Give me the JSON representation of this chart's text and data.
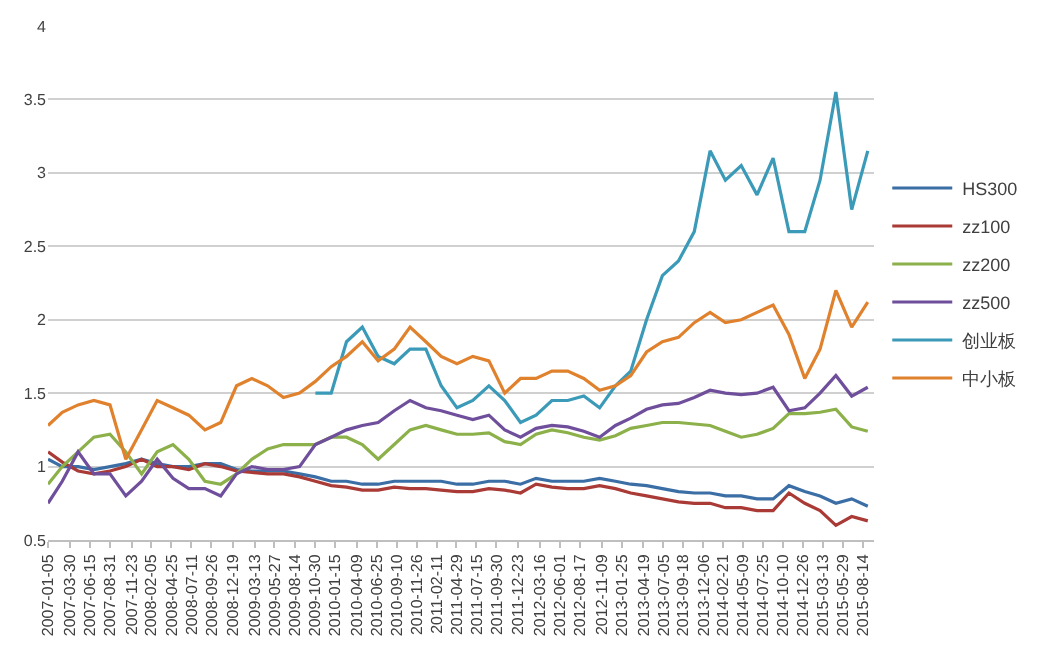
{
  "chart_data": {
    "type": "line",
    "x": [
      "2007-01-05",
      "2007-03",
      "2007-05",
      "2007-07",
      "2007-09",
      "2007-11",
      "2008-01",
      "2008-03",
      "2008-05",
      "2008-07",
      "2008-09",
      "2008-11",
      "2009-01",
      "2009-03",
      "2009-05",
      "2009-07",
      "2009-09",
      "2009-11",
      "2010-01",
      "2010-03",
      "2010-05",
      "2010-07",
      "2010-09",
      "2010-11",
      "2011-01",
      "2011-03",
      "2011-05",
      "2011-07",
      "2011-09",
      "2011-11",
      "2012-01",
      "2012-03",
      "2012-05",
      "2012-07",
      "2012-09",
      "2012-11",
      "2013-01",
      "2013-03",
      "2013-05",
      "2013-07",
      "2013-09",
      "2013-11",
      "2014-01",
      "2014-03",
      "2014-05",
      "2014-07",
      "2014-09",
      "2014-11",
      "2015-01",
      "2015-03",
      "2015-05",
      "2015-07",
      "2015-09"
    ],
    "series": [
      {
        "name": "HS300",
        "color": "#3a6ea5",
        "values": [
          1.05,
          1.0,
          1.0,
          0.98,
          1.0,
          1.02,
          1.05,
          1.02,
          1.0,
          1.0,
          1.02,
          1.02,
          0.98,
          0.97,
          0.97,
          0.97,
          0.95,
          0.93,
          0.9,
          0.9,
          0.88,
          0.88,
          0.9,
          0.9,
          0.9,
          0.9,
          0.88,
          0.88,
          0.9,
          0.9,
          0.88,
          0.92,
          0.9,
          0.9,
          0.9,
          0.92,
          0.9,
          0.88,
          0.87,
          0.85,
          0.83,
          0.82,
          0.82,
          0.8,
          0.8,
          0.78,
          0.78,
          0.87,
          0.83,
          0.8,
          0.75,
          0.78,
          0.73
        ]
      },
      {
        "name": "zz100",
        "color": "#a93a35",
        "values": [
          1.1,
          1.03,
          0.97,
          0.95,
          0.97,
          1.0,
          1.05,
          1.0,
          1.0,
          0.98,
          1.02,
          1.0,
          0.97,
          0.96,
          0.95,
          0.95,
          0.93,
          0.9,
          0.87,
          0.86,
          0.84,
          0.84,
          0.86,
          0.85,
          0.85,
          0.84,
          0.83,
          0.83,
          0.85,
          0.84,
          0.82,
          0.88,
          0.86,
          0.85,
          0.85,
          0.87,
          0.85,
          0.82,
          0.8,
          0.78,
          0.76,
          0.75,
          0.75,
          0.72,
          0.72,
          0.7,
          0.7,
          0.82,
          0.75,
          0.7,
          0.6,
          0.66,
          0.63
        ]
      },
      {
        "name": "zz200",
        "color": "#8cb04a",
        "values": [
          0.88,
          1.0,
          1.1,
          1.2,
          1.22,
          1.1,
          0.95,
          1.1,
          1.15,
          1.05,
          0.9,
          0.88,
          0.95,
          1.05,
          1.12,
          1.15,
          1.15,
          1.15,
          1.2,
          1.2,
          1.15,
          1.05,
          1.15,
          1.25,
          1.28,
          1.25,
          1.22,
          1.22,
          1.23,
          1.17,
          1.15,
          1.22,
          1.25,
          1.23,
          1.2,
          1.18,
          1.21,
          1.26,
          1.28,
          1.3,
          1.3,
          1.29,
          1.28,
          1.24,
          1.2,
          1.22,
          1.26,
          1.36,
          1.36,
          1.37,
          1.39,
          1.27,
          1.24
        ]
      },
      {
        "name": "zz500",
        "color": "#6f4f9b",
        "values": [
          0.75,
          0.9,
          1.1,
          0.95,
          0.95,
          0.8,
          0.9,
          1.05,
          0.92,
          0.85,
          0.85,
          0.8,
          0.95,
          1.0,
          0.98,
          0.98,
          1.0,
          1.15,
          1.2,
          1.25,
          1.28,
          1.3,
          1.38,
          1.45,
          1.4,
          1.38,
          1.35,
          1.32,
          1.35,
          1.25,
          1.2,
          1.26,
          1.28,
          1.27,
          1.24,
          1.2,
          1.28,
          1.33,
          1.39,
          1.42,
          1.43,
          1.47,
          1.52,
          1.5,
          1.49,
          1.5,
          1.54,
          1.38,
          1.4,
          1.5,
          1.62,
          1.48,
          1.54
        ]
      },
      {
        "name": "创业板",
        "color": "#3a9ab8",
        "values": [
          null,
          null,
          null,
          null,
          null,
          null,
          null,
          null,
          null,
          null,
          null,
          null,
          null,
          null,
          null,
          null,
          null,
          1.5,
          1.5,
          1.85,
          1.95,
          1.75,
          1.7,
          1.8,
          1.8,
          1.55,
          1.4,
          1.45,
          1.55,
          1.45,
          1.3,
          1.35,
          1.45,
          1.45,
          1.48,
          1.4,
          1.55,
          1.65,
          2.0,
          2.3,
          2.4,
          2.6,
          3.15,
          2.95,
          3.05,
          2.85,
          3.1,
          2.6,
          2.6,
          2.95,
          3.55,
          2.75,
          3.15
        ]
      },
      {
        "name": "中小板",
        "color": "#e0822d",
        "values": [
          1.28,
          1.37,
          1.42,
          1.45,
          1.42,
          1.05,
          1.25,
          1.45,
          1.4,
          1.35,
          1.25,
          1.3,
          1.55,
          1.6,
          1.55,
          1.47,
          1.5,
          1.58,
          1.68,
          1.75,
          1.85,
          1.72,
          1.8,
          1.95,
          1.85,
          1.75,
          1.7,
          1.75,
          1.72,
          1.5,
          1.6,
          1.6,
          1.65,
          1.65,
          1.6,
          1.52,
          1.55,
          1.62,
          1.78,
          1.85,
          1.88,
          1.98,
          2.05,
          1.98,
          2.0,
          2.05,
          2.1,
          1.9,
          1.6,
          1.8,
          2.2,
          1.95,
          2.12
        ]
      }
    ],
    "xlim": [
      "2007-01-05",
      "2015-09-25"
    ],
    "xticks": [
      "2007-01-05",
      "2007-03-30",
      "2007-06-15",
      "2007-08-31",
      "2007-11-23",
      "2008-02-05",
      "2008-04-25",
      "2008-07-11",
      "2008-09-26",
      "2008-12-19",
      "2009-03-13",
      "2009-05-27",
      "2009-08-14",
      "2009-10-30",
      "2010-01-15",
      "2010-04-09",
      "2010-06-25",
      "2010-09-10",
      "2010-11-26",
      "2011-02-11",
      "2011-04-29",
      "2011-07-15",
      "2011-09-30",
      "2011-12-23",
      "2012-03-16",
      "2012-06-01",
      "2012-08-17",
      "2012-11-09",
      "2013-01-25",
      "2013-04-19",
      "2013-07-05",
      "2013-09-18",
      "2013-12-06",
      "2014-02-21",
      "2014-05-09",
      "2014-07-25",
      "2014-10-10",
      "2014-12-26",
      "2015-03-13",
      "2015-05-29",
      "2015-08-14"
    ],
    "ylim": [
      0.5,
      4
    ],
    "yticks": [
      0.5,
      1,
      1.5,
      2,
      2.5,
      3,
      3.5,
      4
    ],
    "grid": "y",
    "legend": "right",
    "marker": "none",
    "line_style": "solid"
  }
}
